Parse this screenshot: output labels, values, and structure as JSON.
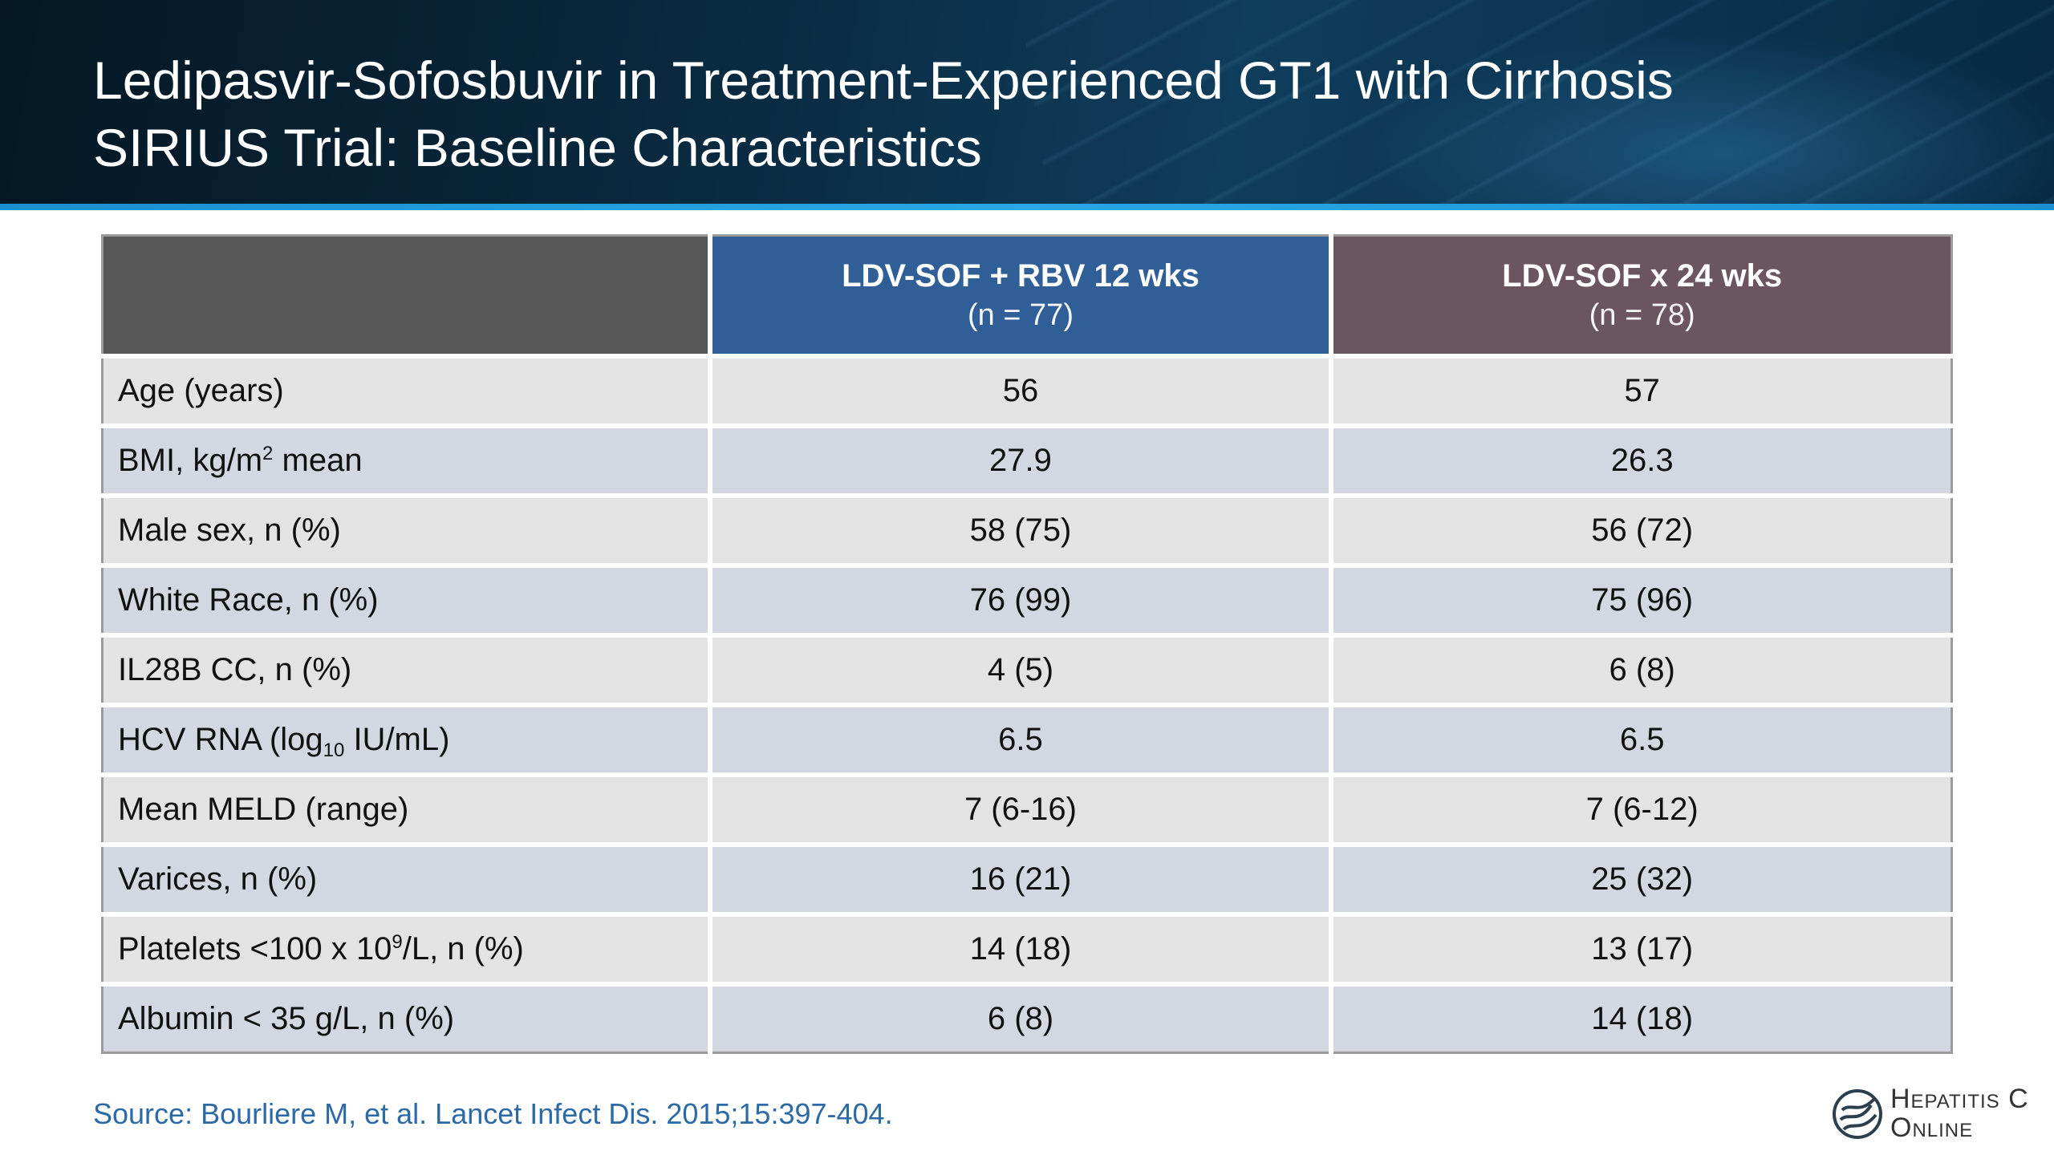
{
  "slide": {
    "title_line1": "Ledipasvir-Sofosbuvir in Treatment-Experienced GT1 with Cirrhosis",
    "title_line2": "SIRIUS Trial: Baseline Characteristics",
    "source": "Source: Bourliere M, et al. Lancet Infect Dis. 2015;15:397-404."
  },
  "table": {
    "columns": [
      {
        "label": "LDV-SOF + RBV 12 wks",
        "sub": "(n = 77)",
        "color": "#2f5f96"
      },
      {
        "label": "LDV-SOF x 24 wks",
        "sub": "(n = 78)",
        "color": "#6b5560"
      }
    ],
    "rows": [
      {
        "label": "Age (years)",
        "c1": "56",
        "c2": "57"
      },
      {
        "label_pre": "BMI, kg/m",
        "label_sup": "2",
        "label_post": " mean",
        "c1": "27.9",
        "c2": "26.3"
      },
      {
        "label": "Male sex, n (%)",
        "c1": "58 (75)",
        "c2": "56 (72)"
      },
      {
        "label": "White Race, n (%)",
        "c1": "76 (99)",
        "c2": "75 (96)"
      },
      {
        "label": "IL28B CC, n (%)",
        "c1": "4 (5)",
        "c2": "6 (8)"
      },
      {
        "label_pre": "HCV RNA (log",
        "label_sub": "10",
        "label_post": " IU/mL)",
        "c1": "6.5",
        "c2": "6.5"
      },
      {
        "label": "Mean MELD (range)",
        "c1": "7 (6-16)",
        "c2": "7 (6-12)"
      },
      {
        "label": "Varices, n (%)",
        "c1": "16 (21)",
        "c2": "25 (32)"
      },
      {
        "label_pre": "Platelets <100 x 10",
        "label_sup": "9",
        "label_post": "/L, n (%)",
        "c1": "14 (18)",
        "c2": "13 (17)"
      },
      {
        "label": "Albumin < 35 g/L, n (%)",
        "c1": "6 (8)",
        "c2": "14 (18)"
      }
    ]
  },
  "logo": {
    "line1": "Hepatitis C",
    "line2": "Online",
    "icon": "hepatitis-c-online-logo-icon"
  }
}
